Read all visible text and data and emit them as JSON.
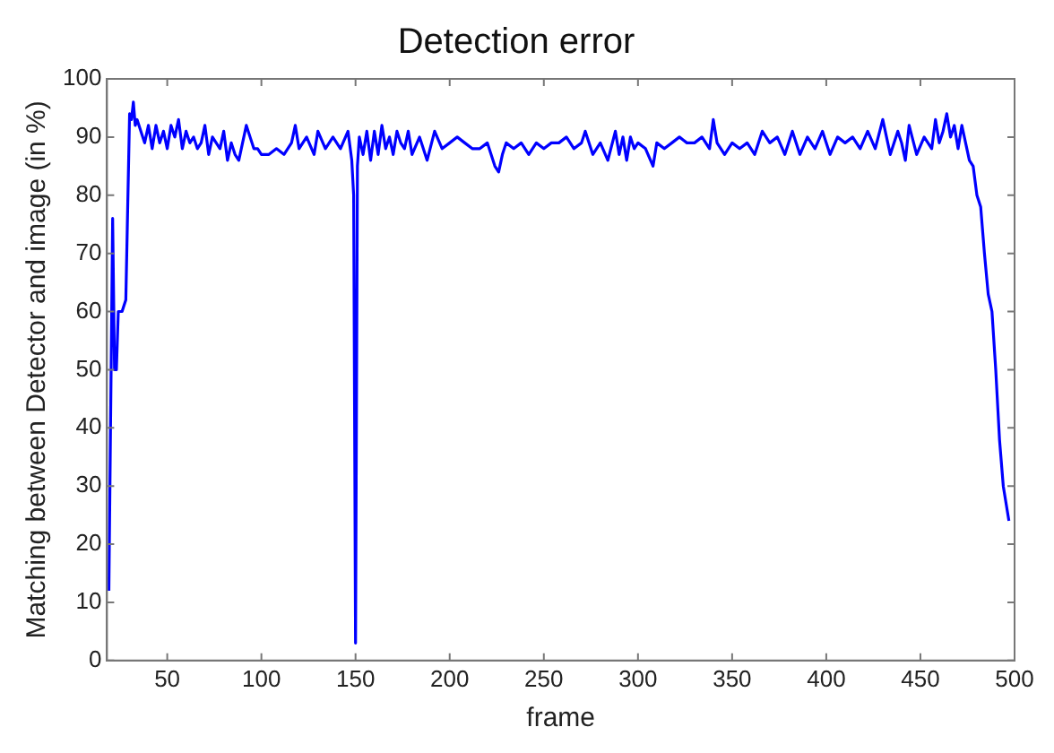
{
  "chart_data": {
    "type": "line",
    "title": "Detection error",
    "xlabel": "frame",
    "ylabel": "Matching between Detector and image (in %)",
    "x": [
      19,
      21,
      22,
      23,
      24,
      26,
      28,
      30,
      31,
      32,
      33,
      34,
      36,
      38,
      40,
      42,
      44,
      46,
      48,
      50,
      52,
      54,
      56,
      58,
      60,
      62,
      64,
      66,
      68,
      70,
      72,
      74,
      76,
      78,
      80,
      82,
      84,
      86,
      88,
      90,
      92,
      94,
      96,
      98,
      100,
      104,
      108,
      112,
      116,
      118,
      120,
      124,
      128,
      130,
      134,
      138,
      142,
      146,
      148,
      149,
      150,
      151,
      152,
      154,
      156,
      158,
      160,
      162,
      164,
      166,
      168,
      170,
      172,
      174,
      176,
      178,
      180,
      184,
      188,
      192,
      196,
      200,
      204,
      208,
      212,
      216,
      220,
      224,
      226,
      228,
      230,
      234,
      238,
      242,
      246,
      250,
      254,
      258,
      262,
      266,
      270,
      272,
      276,
      280,
      284,
      288,
      290,
      292,
      294,
      296,
      298,
      300,
      304,
      308,
      310,
      314,
      318,
      322,
      326,
      330,
      334,
      338,
      340,
      342,
      346,
      350,
      354,
      358,
      362,
      366,
      370,
      374,
      378,
      382,
      386,
      390,
      394,
      398,
      402,
      406,
      410,
      414,
      418,
      422,
      426,
      430,
      434,
      438,
      440,
      442,
      444,
      448,
      452,
      456,
      458,
      460,
      462,
      464,
      466,
      468,
      470,
      472,
      474,
      476,
      478,
      480,
      482,
      484,
      486,
      488,
      490,
      492,
      494,
      497
    ],
    "series": [
      {
        "color": "#0000ff",
        "values": [
          12,
          76,
          50,
          50,
          60,
          60,
          62,
          94,
          93,
          96,
          92,
          93,
          91,
          89,
          92,
          88,
          92,
          89,
          91,
          88,
          92,
          90,
          93,
          88,
          91,
          89,
          90,
          88,
          89,
          92,
          87,
          90,
          89,
          88,
          91,
          86,
          89,
          87,
          86,
          89,
          92,
          90,
          88,
          88,
          87,
          87,
          88,
          87,
          89,
          92,
          88,
          90,
          87,
          91,
          88,
          90,
          88,
          91,
          86,
          80,
          3,
          85,
          90,
          87,
          91,
          86,
          91,
          87,
          92,
          88,
          90,
          87,
          91,
          89,
          88,
          91,
          87,
          90,
          86,
          91,
          88,
          89,
          90,
          89,
          88,
          88,
          89,
          85,
          84,
          87,
          89,
          88,
          89,
          87,
          89,
          88,
          89,
          89,
          90,
          88,
          89,
          91,
          87,
          89,
          86,
          91,
          87,
          90,
          86,
          90,
          88,
          89,
          88,
          85,
          89,
          88,
          89,
          90,
          89,
          89,
          90,
          88,
          93,
          89,
          87,
          89,
          88,
          89,
          87,
          91,
          89,
          90,
          87,
          91,
          87,
          90,
          88,
          91,
          87,
          90,
          89,
          90,
          88,
          91,
          88,
          93,
          87,
          91,
          89,
          86,
          92,
          87,
          90,
          88,
          93,
          89,
          91,
          94,
          90,
          92,
          88,
          92,
          89,
          86,
          85,
          80,
          78,
          70,
          63,
          60,
          50,
          38,
          30,
          24
        ]
      }
    ],
    "xlim": [
      18,
      500
    ],
    "ylim": [
      0,
      100
    ],
    "xticks": [
      50,
      100,
      150,
      200,
      250,
      300,
      350,
      400,
      450,
      500
    ],
    "yticks": [
      0,
      10,
      20,
      30,
      40,
      50,
      60,
      70,
      80,
      90,
      100
    ],
    "grid": false,
    "legend": false,
    "marker": "none",
    "line_style": "solid"
  }
}
